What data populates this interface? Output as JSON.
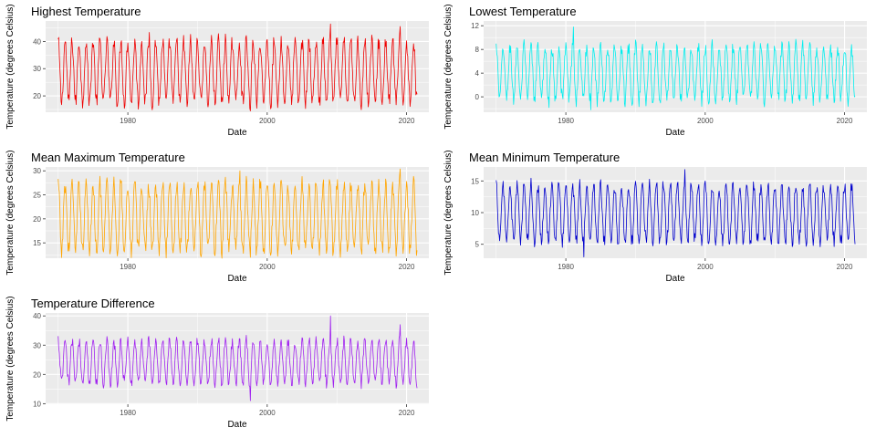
{
  "chart_data": [
    {
      "type": "line",
      "title": "Highest Temperature",
      "xlabel": "Date",
      "ylabel": "Temperature (degrees Celsius)",
      "color": "#ee0000",
      "xlim": [
        1968.2,
        2023.2
      ],
      "ylim": [
        14.0,
        47.5
      ],
      "xticks": [
        1980,
        2000,
        2020
      ],
      "yticks": [
        20,
        30,
        40
      ],
      "grid": true,
      "x_range": [
        1970.0,
        2021.5
      ],
      "seasonal_low": 17.5,
      "seasonal_high": 40.0,
      "peak_month": 1,
      "extremes": [
        {
          "date": 2009.1,
          "value": 46.4
        },
        {
          "date": 2019.1,
          "value": 45.5
        },
        {
          "date": 1983.1,
          "value": 43.3
        },
        {
          "date": 1997.6,
          "value": 14.5
        }
      ]
    },
    {
      "type": "line",
      "title": "Lowest Temperature",
      "xlabel": "Date",
      "ylabel": "Temperature (degrees Celsius)",
      "color": "#00eeee",
      "xlim": [
        1968.2,
        2023.2
      ],
      "ylim": [
        -2.6,
        12.8
      ],
      "xticks": [
        1980,
        2000,
        2020
      ],
      "yticks": [
        0,
        4,
        8,
        12
      ],
      "grid": true,
      "x_range": [
        1970.0,
        2021.5
      ],
      "seasonal_low": -0.5,
      "seasonal_high": 8.5,
      "peak_month": 1,
      "extremes": [
        {
          "date": 1981.1,
          "value": 11.8
        },
        {
          "date": 1983.6,
          "value": -2.2
        },
        {
          "date": 1977.6,
          "value": -1.8
        }
      ]
    },
    {
      "type": "line",
      "title": "Mean Maximum Temperature",
      "xlabel": "Date",
      "ylabel": "Temperature (degrees Celsius)",
      "color": "#ffa500",
      "xlim": [
        1968.2,
        2023.2
      ],
      "ylim": [
        11.8,
        30.8
      ],
      "xticks": [
        1980,
        2000,
        2020
      ],
      "yticks": [
        15,
        20,
        25,
        30
      ],
      "grid": true,
      "x_range": [
        1970.0,
        2021.5
      ],
      "seasonal_low": 13.3,
      "seasonal_high": 27.3,
      "peak_month": 1,
      "extremes": [
        {
          "date": 2019.1,
          "value": 30.4
        },
        {
          "date": 1996.1,
          "value": 30.0
        },
        {
          "date": 1997.6,
          "value": 12.0
        }
      ]
    },
    {
      "type": "line",
      "title": "Mean Minimum Temperature",
      "xlabel": "Date",
      "ylabel": "Temperature (degrees Celsius)",
      "color": "#0000cd",
      "xlim": [
        1968.2,
        2023.2
      ],
      "ylim": [
        2.8,
        17.2
      ],
      "xticks": [
        1980,
        2000,
        2020
      ],
      "yticks": [
        5,
        10,
        15
      ],
      "grid": true,
      "x_range": [
        1970.0,
        2021.5
      ],
      "seasonal_low": 5.5,
      "seasonal_high": 14.3,
      "peak_month": 1,
      "extremes": [
        {
          "date": 1997.1,
          "value": 16.8
        },
        {
          "date": 1982.6,
          "value": 3.0
        }
      ]
    },
    {
      "type": "line",
      "title": "Temperature Difference",
      "xlabel": "Date",
      "ylabel": "Temperature (degrees Celsius)",
      "color": "#a020f0",
      "xlim": [
        1968.2,
        2023.2
      ],
      "ylim": [
        9.8,
        41.0
      ],
      "xticks": [
        1980,
        2000,
        2020
      ],
      "yticks": [
        10,
        20,
        30,
        40
      ],
      "grid": true,
      "x_range": [
        1970.0,
        2021.5
      ],
      "seasonal_low": 17.0,
      "seasonal_high": 31.5,
      "peak_month": 1,
      "extremes": [
        {
          "date": 2009.1,
          "value": 40.0
        },
        {
          "date": 2019.1,
          "value": 37.0
        },
        {
          "date": 1997.6,
          "value": 11.0
        }
      ]
    }
  ]
}
